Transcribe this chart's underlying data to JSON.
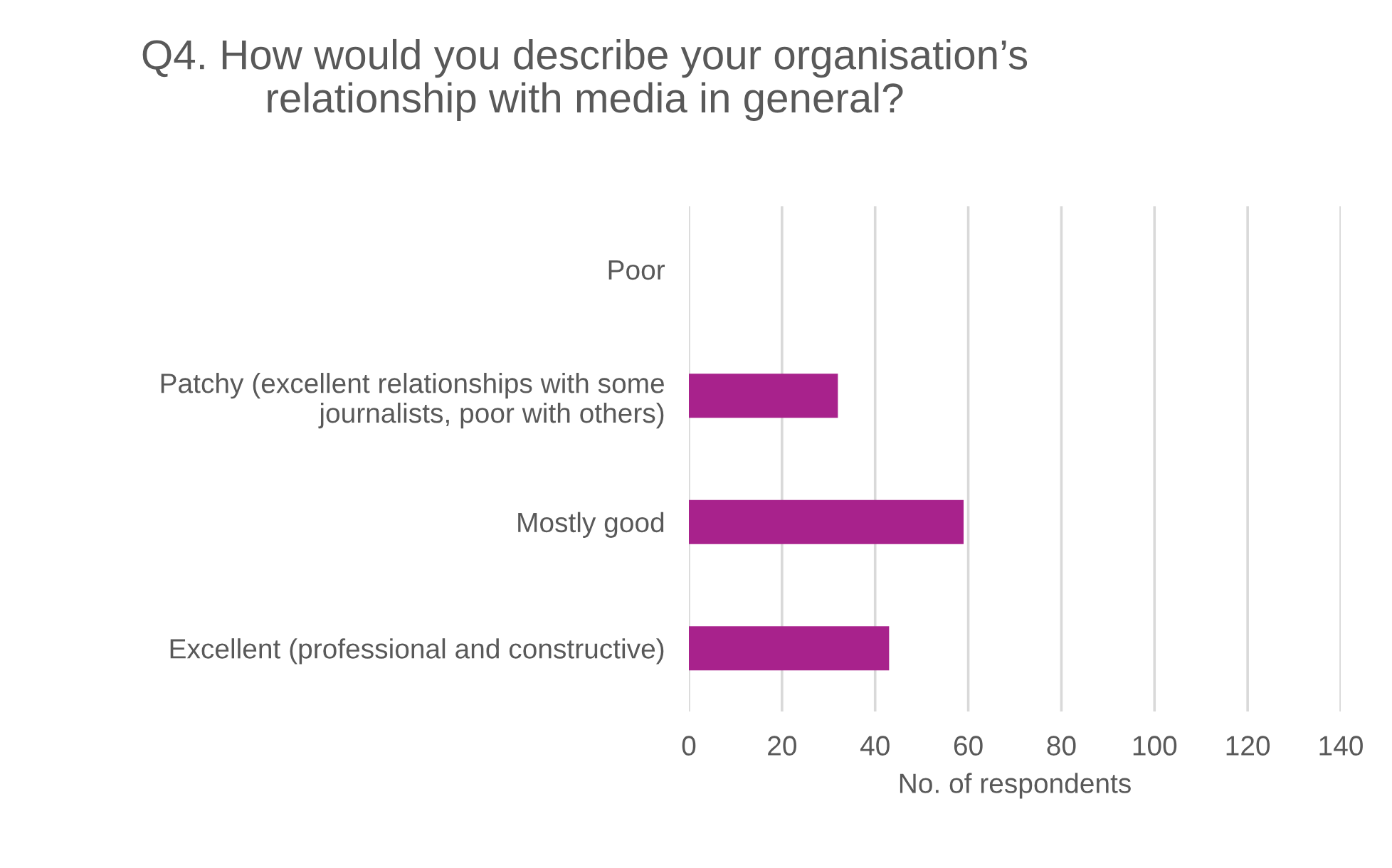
{
  "chart_data": {
    "type": "bar",
    "orientation": "horizontal",
    "title": "Q4. How would you describe your organisation’s\nrelationship with media in general?",
    "xlabel": "No. of respondents",
    "categories": [
      "Poor",
      "Patchy (excellent relationships with some\njournalists, poor with others)",
      "Mostly good",
      "Excellent (professional and constructive)"
    ],
    "values": [
      0,
      32,
      59,
      43
    ],
    "color": "#a8228c",
    "xlim": [
      0,
      140
    ],
    "xticks": [
      0,
      20,
      40,
      60,
      80,
      100,
      120,
      140
    ],
    "grid": "x",
    "legend": false
  }
}
